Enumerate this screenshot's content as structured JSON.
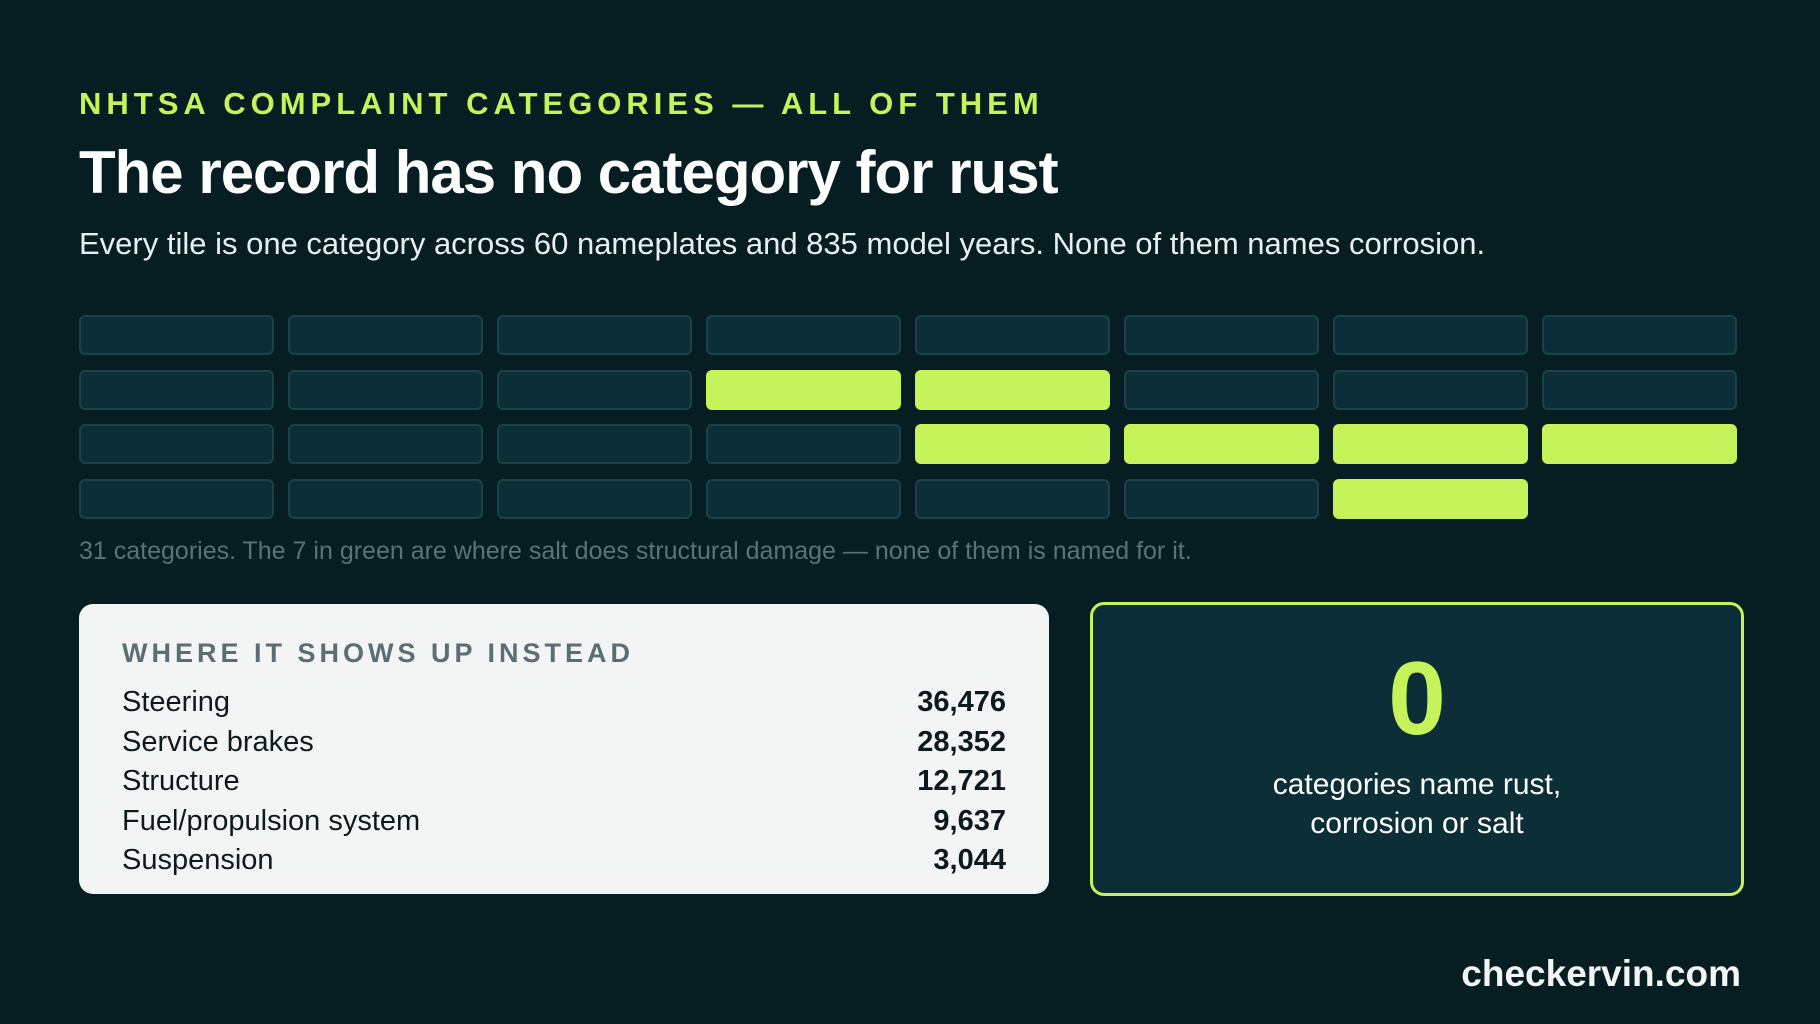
{
  "header": {
    "eyebrow": "NHTSA COMPLAINT CATEGORIES — ALL OF THEM",
    "title": "The record has no category for rust",
    "subtitle": "Every tile is one category across 60 nameplates and 835 model years. None of them names corrosion."
  },
  "chart_data": [
    {
      "type": "waffle",
      "total": 31,
      "highlighted_count": 7,
      "columns": 8,
      "highlighted_indices": [
        11,
        12,
        20,
        21,
        22,
        23,
        30
      ],
      "caption": "31 categories. The 7 in green are where salt does structural damage — none of them is named for it.",
      "colors": {
        "tile": "#0c2f37",
        "tile_border": "#194249",
        "highlight": "#c6f25a"
      }
    },
    {
      "type": "table",
      "title": "WHERE IT SHOWS UP INSTEAD",
      "rows": [
        {
          "label": "Steering",
          "value": "36,476"
        },
        {
          "label": "Service brakes",
          "value": "28,352"
        },
        {
          "label": "Structure",
          "value": "12,721"
        },
        {
          "label": "Fuel/propulsion system",
          "value": "9,637"
        },
        {
          "label": "Suspension",
          "value": "3,044"
        }
      ]
    }
  ],
  "stat": {
    "value": "0",
    "label_line1": "categories name rust,",
    "label_line2": "corrosion or salt"
  },
  "footer": {
    "brand": "checkervin.com"
  },
  "colors": {
    "background": "#061d22",
    "accent": "#c6f25a",
    "card_light": "#f3f5f4"
  }
}
